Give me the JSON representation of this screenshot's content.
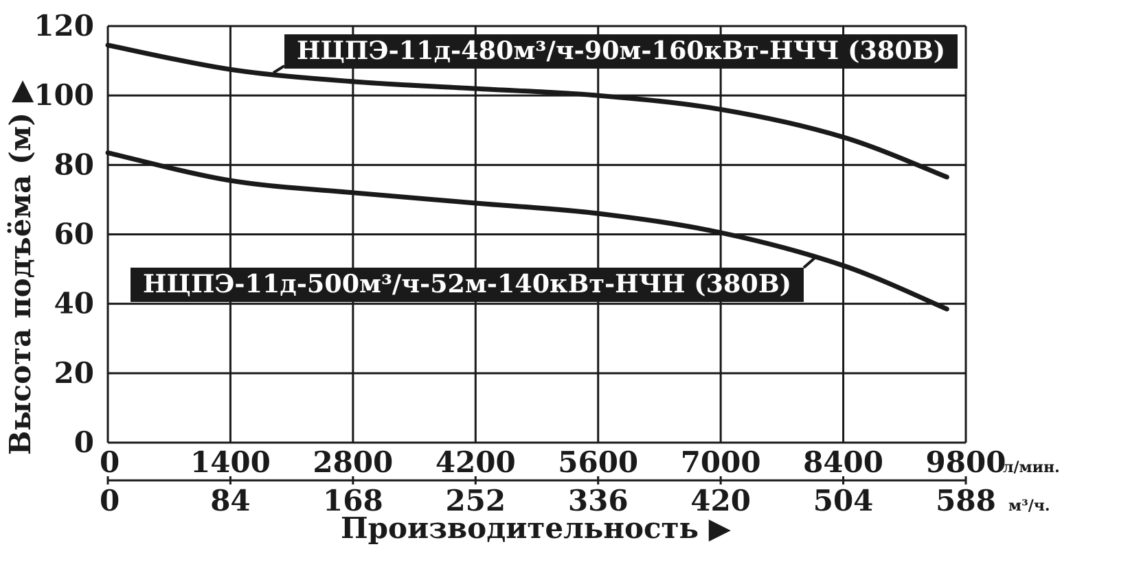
{
  "chart_data": {
    "type": "line",
    "ylabel": "Высота подъёма (м) ▶",
    "xlabel": "Производительность ▶",
    "ylim": [
      0,
      120
    ],
    "y_ticks": [
      "0",
      "20",
      "40",
      "60",
      "80",
      "100",
      "120"
    ],
    "xlim": [
      0,
      588
    ],
    "x_ticks_primary": [
      "0",
      "1400",
      "2800",
      "4200",
      "5600",
      "7000",
      "8400",
      "9800"
    ],
    "x_unit_primary": "л/мин.",
    "x_ticks_secondary": [
      "0",
      "84",
      "168",
      "252",
      "336",
      "420",
      "504",
      "588"
    ],
    "x_unit_secondary": "м³/ч.",
    "grid": true,
    "series": [
      {
        "name": "НЦПЭ-11д-480м³/ч-90м-160кВт-НЧЧ (380В)",
        "x": [
          0,
          84,
          168,
          252,
          336,
          420,
          504,
          575
        ],
        "y": [
          114.5,
          107.5,
          104,
          102,
          100,
          96,
          88,
          76.5
        ]
      },
      {
        "name": "НЦПЭ-11д-500м³/ч-52м-140кВт-НЧН (380В)",
        "x": [
          0,
          84,
          168,
          252,
          336,
          420,
          504,
          575
        ],
        "y": [
          83.5,
          75.5,
          72,
          69,
          66,
          60.5,
          51,
          38.5
        ]
      }
    ],
    "colors": {
      "line": "#1a1a1a",
      "label_bg": "#1a1a1a",
      "label_text": "#ffffff"
    }
  }
}
